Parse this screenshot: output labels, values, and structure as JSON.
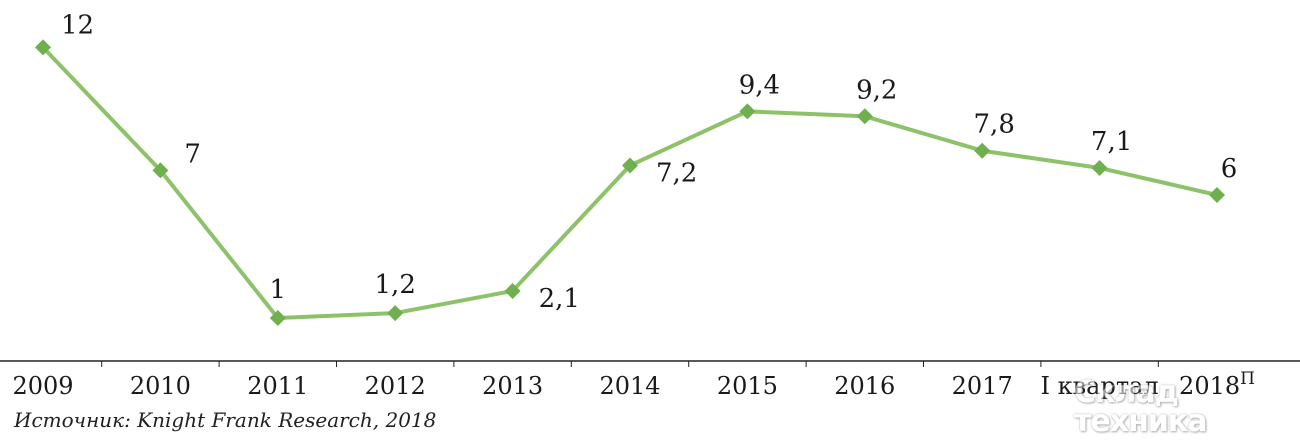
{
  "chart_data": {
    "type": "line",
    "categories": [
      "2009",
      "2010",
      "2011",
      "2012",
      "2013",
      "2014",
      "2015",
      "2016",
      "2017",
      "I квартал 2018",
      "2018"
    ],
    "category_suffix": [
      "",
      "",
      "",
      "",
      "",
      "",
      "",
      "",
      "",
      "",
      "П"
    ],
    "values": [
      12,
      7,
      1,
      1.2,
      2.1,
      7.2,
      9.4,
      9.2,
      7.8,
      7.1,
      6
    ],
    "data_labels": [
      "12",
      "7",
      "1",
      "1,2",
      "2,1",
      "7,2",
      "9,4",
      "9,2",
      "7,8",
      "7,1",
      "6"
    ],
    "title": "",
    "xlabel": "",
    "ylabel": "",
    "ylim": [
      0,
      12
    ],
    "grid": false,
    "line_color": "#8dc26a",
    "marker_color": "#6fb04e",
    "marker": "diamond"
  },
  "source": "Источник: Knight Frank Research, 2018",
  "watermark": {
    "line1": "Склад",
    "line2": "техника"
  }
}
